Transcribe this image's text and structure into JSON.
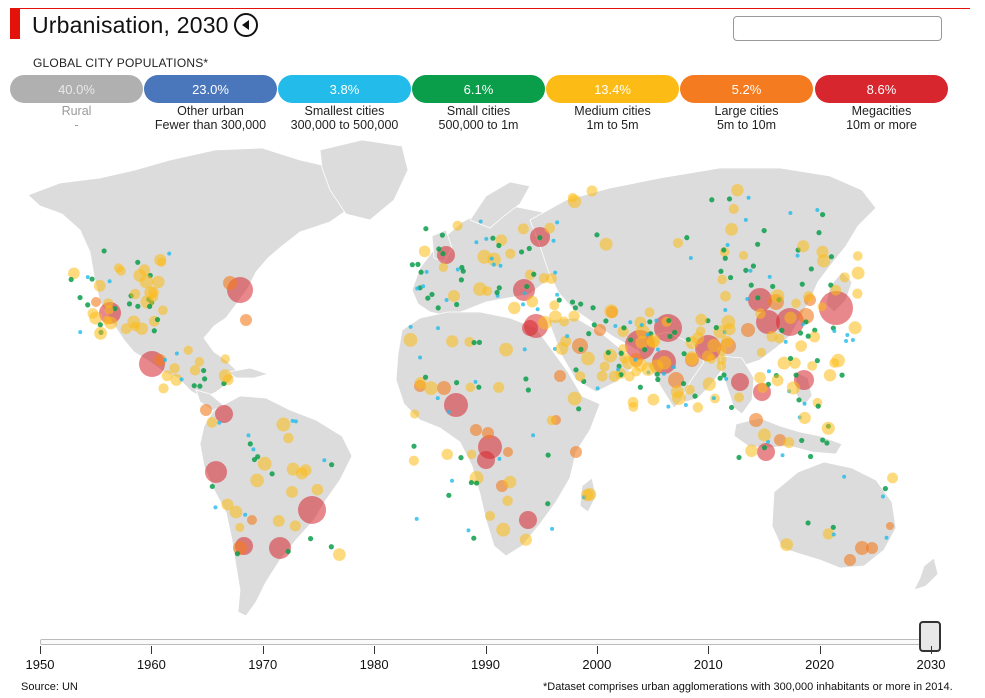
{
  "header": {
    "title": "Urbanisation, 2030",
    "subtitle": "GLOBAL CITY POPULATIONS*",
    "search_placeholder": ""
  },
  "categories": [
    {
      "value": "40.0%",
      "name": "Rural",
      "range": "-",
      "color": "#b0b0b0",
      "enabled": false
    },
    {
      "value": "23.0%",
      "name": "Other urban",
      "range": "Fewer than 300,000",
      "color": "#4a77bb",
      "enabled": true
    },
    {
      "value": "3.8%",
      "name": "Smallest cities",
      "range": "300,000 to 500,000",
      "color": "#22bbea",
      "enabled": true
    },
    {
      "value": "6.1%",
      "name": "Small cities",
      "range": "500,000 to 1m",
      "color": "#0b9e4a",
      "enabled": true
    },
    {
      "value": "13.4%",
      "name": "Medium cities",
      "range": "1m to 5m",
      "color": "#fdbb16",
      "enabled": true
    },
    {
      "value": "5.2%",
      "name": "Large cities",
      "range": "5m to 10m",
      "color": "#f47b20",
      "enabled": true
    },
    {
      "value": "8.6%",
      "name": "Megacities",
      "range": "10m or more",
      "color": "#d7262e",
      "enabled": true
    }
  ],
  "timeline": {
    "years": [
      "1950",
      "1960",
      "1970",
      "1980",
      "1990",
      "2000",
      "2010",
      "2020",
      "2030"
    ],
    "selected_year": "2030"
  },
  "footer": {
    "source": "Source: UN",
    "footnote": "*Dataset comprises urban agglomerations with 300,000 inhabitants or more in 2014."
  }
}
